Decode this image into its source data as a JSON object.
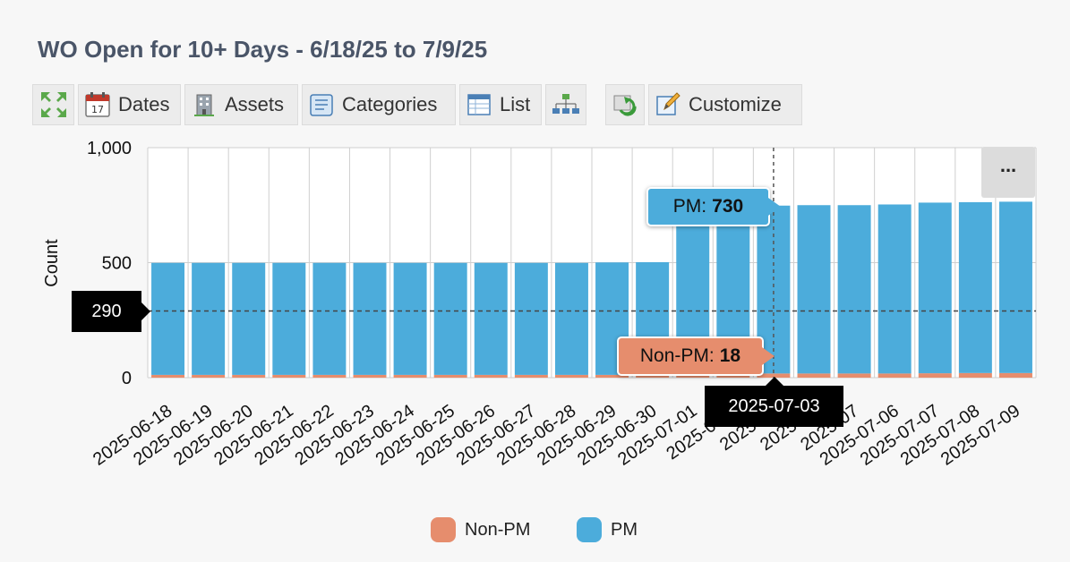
{
  "title": "WO Open for 10+ Days - 6/18/25 to 7/9/25",
  "toolbar": {
    "dates_label": "Dates",
    "assets_label": "Assets",
    "categories_label": "Categories",
    "list_label": "List",
    "customize_label": "Customize"
  },
  "more_button": "...",
  "colors": {
    "non_pm": "#e68d6d",
    "pm": "#4cacdb",
    "title": "#4a5568"
  },
  "tooltips": {
    "pm": {
      "label": "PM:",
      "value": "730"
    },
    "non_pm": {
      "label": "Non-PM:",
      "value": "18"
    }
  },
  "crosshair": {
    "y_value": "290",
    "x_value": "2025-07-03"
  },
  "legend": {
    "non_pm": "Non-PM",
    "pm": "PM"
  },
  "chart_data": {
    "type": "bar",
    "stacked": true,
    "ylabel": "Count",
    "ylim": [
      0,
      1000
    ],
    "yticks": [
      0,
      500,
      1000
    ],
    "ytick_labels": [
      "0",
      "500",
      "1,000"
    ],
    "grid": true,
    "legend_position": "bottom",
    "categories": [
      "2025-06-18",
      "2025-06-19",
      "2025-06-20",
      "2025-06-21",
      "2025-06-22",
      "2025-06-23",
      "2025-06-24",
      "2025-06-25",
      "2025-06-26",
      "2025-06-27",
      "2025-06-28",
      "2025-06-29",
      "2025-06-30",
      "2025-07-01",
      "2025-07-02",
      "2025-07-03",
      "2025-07-04",
      "2025-07-05",
      "2025-07-06",
      "2025-07-07",
      "2025-07-08",
      "2025-07-09"
    ],
    "tick_labels": [
      "2025-06-18",
      "2025-06-19",
      "2025-06-20",
      "2025-06-21",
      "2025-06-22",
      "2025-06-23",
      "2025-06-24",
      "2025-06-25",
      "2025-06-26",
      "2025-06-27",
      "2025-06-28",
      "2025-06-29",
      "2025-06-30",
      "2025-07-01",
      "2025-07-0",
      "2025-07",
      "2025-07",
      "2025-07",
      "2025-07-06",
      "2025-07-07",
      "2025-07-08",
      "2025-07-09"
    ],
    "series": [
      {
        "name": "Non-PM",
        "values": [
          12,
          12,
          12,
          12,
          12,
          12,
          12,
          12,
          12,
          12,
          12,
          12,
          12,
          15,
          16,
          18,
          18,
          18,
          18,
          19,
          20,
          20
        ]
      },
      {
        "name": "PM",
        "values": [
          487,
          487,
          487,
          487,
          487,
          487,
          487,
          487,
          487,
          487,
          487,
          489,
          490,
          697,
          713,
          730,
          732,
          732,
          735,
          742,
          743,
          745
        ]
      }
    ]
  }
}
